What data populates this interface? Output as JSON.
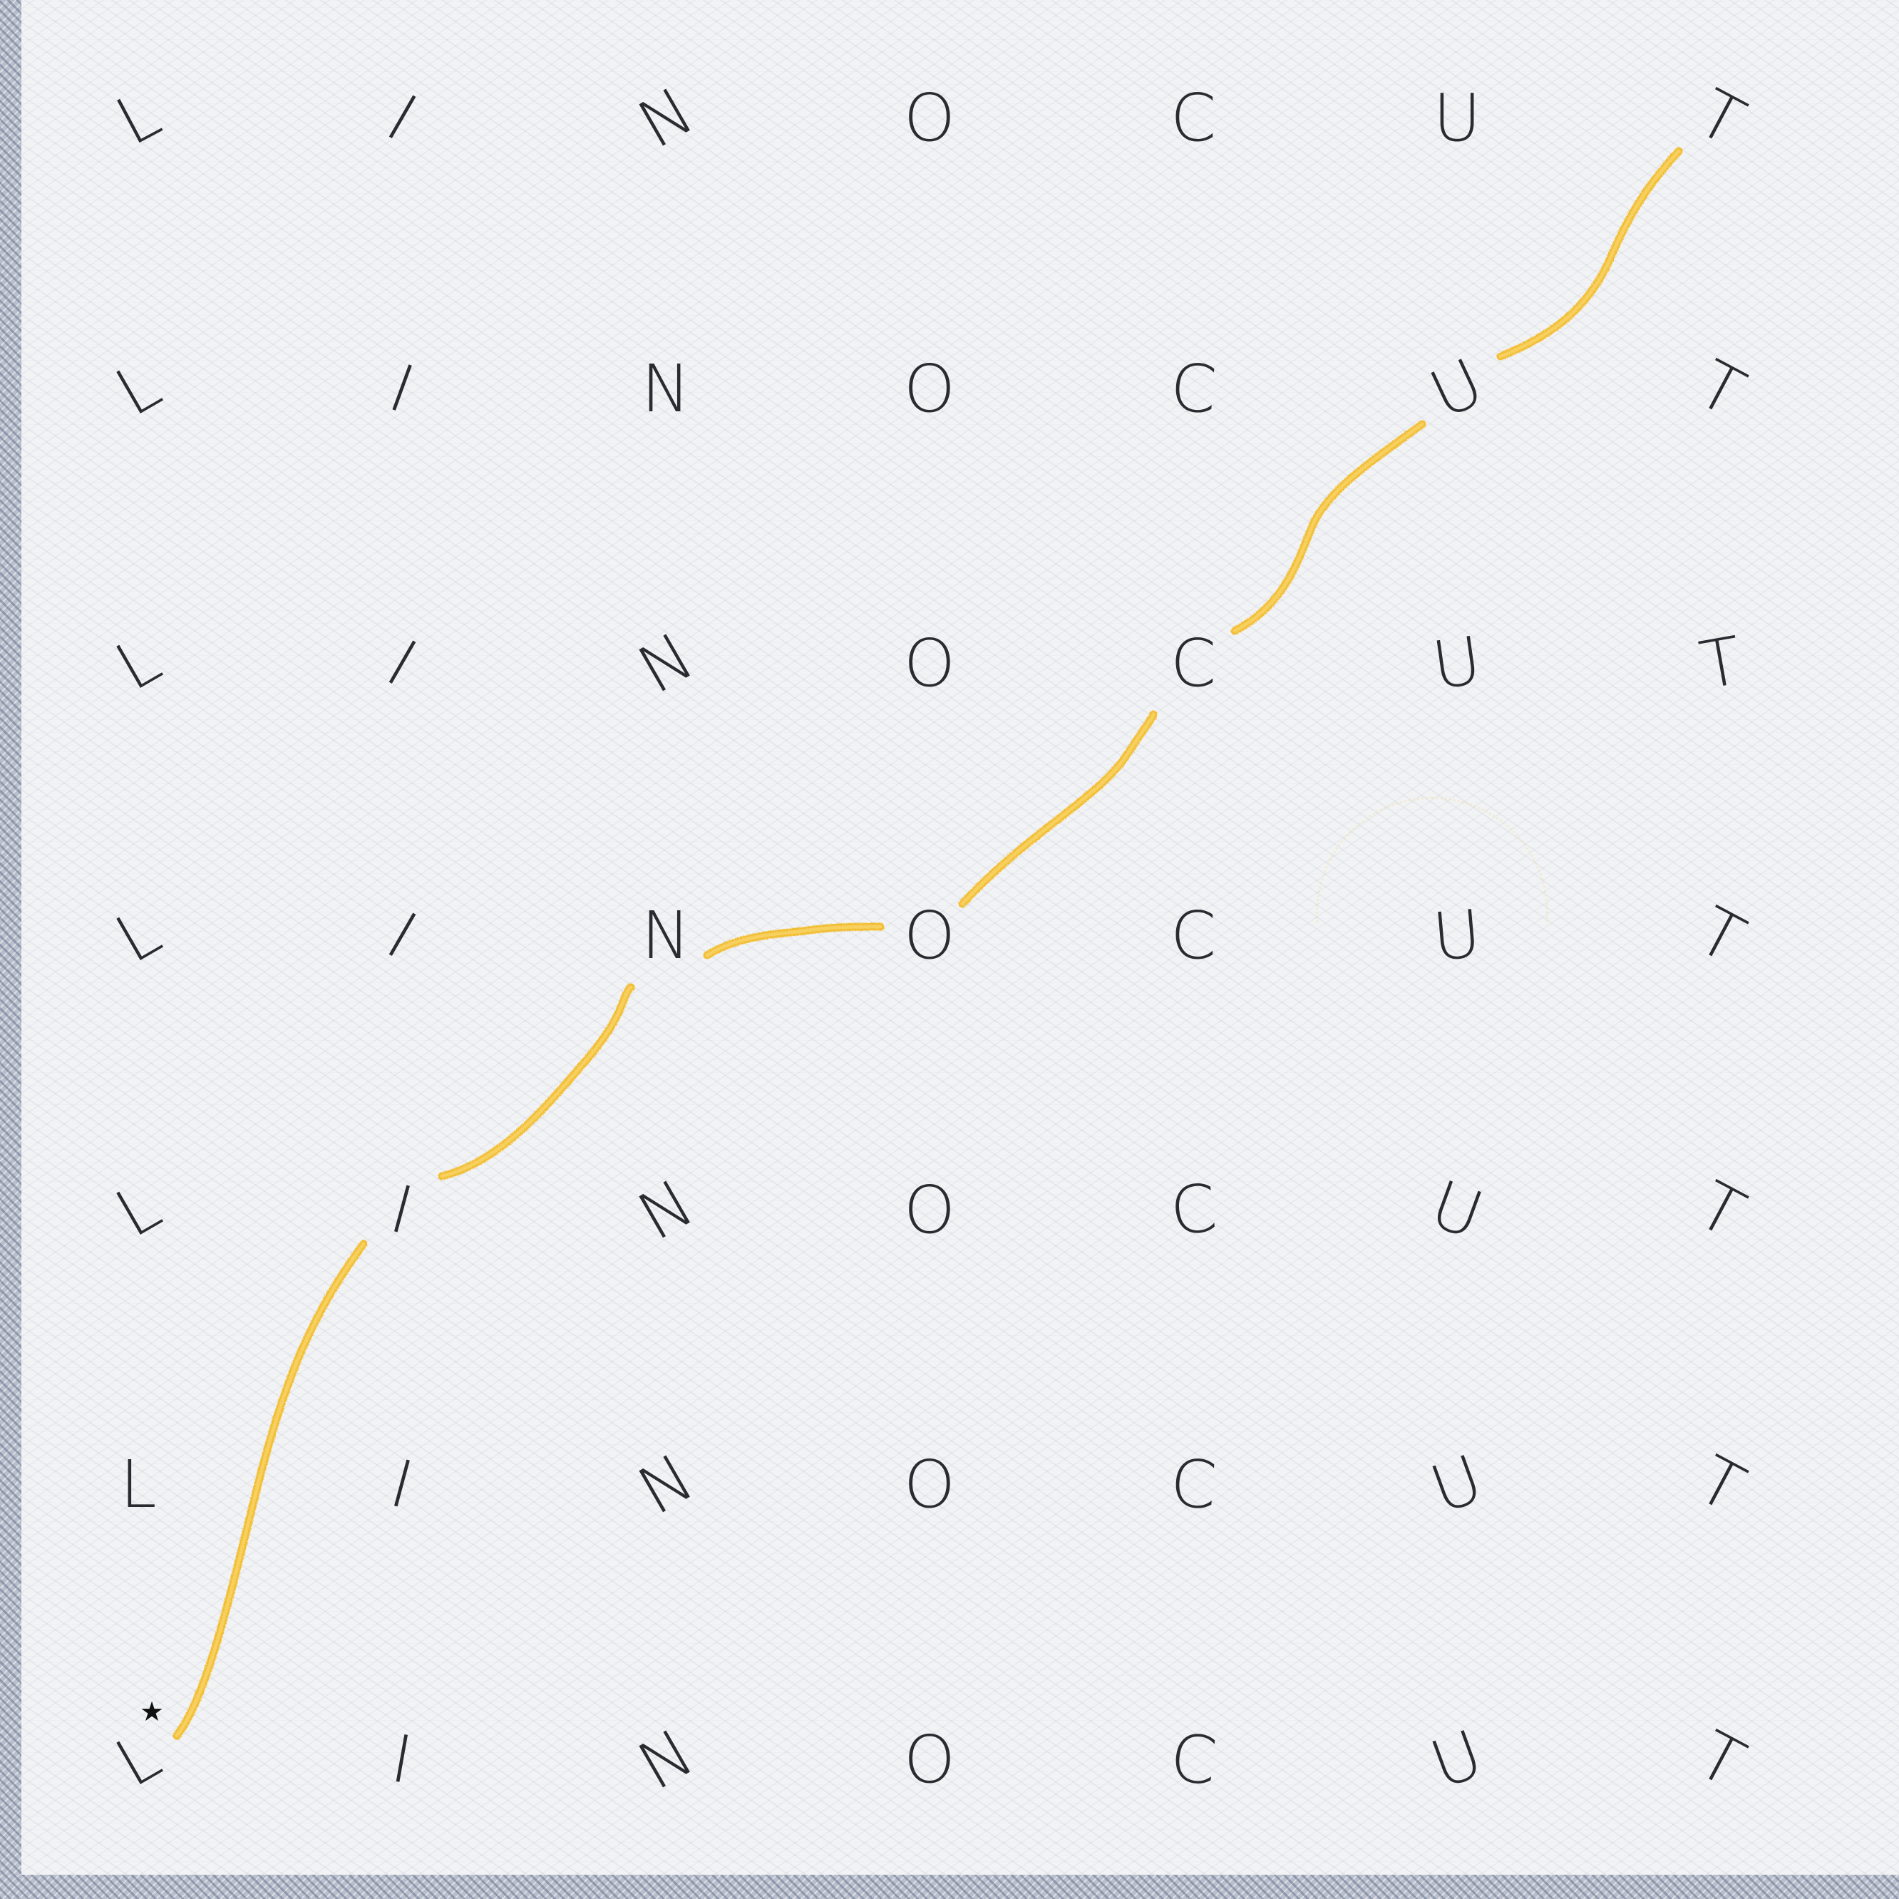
{
  "puzzle": {
    "word": "LINOCUT",
    "rows": [
      [
        "L",
        "I",
        "N",
        "O",
        "C",
        "U",
        "T"
      ],
      [
        "L",
        "I",
        "N",
        "O",
        "C",
        "U",
        "T"
      ],
      [
        "L",
        "I",
        "N",
        "O",
        "C",
        "U",
        "T"
      ],
      [
        "L",
        "I",
        "N",
        "O",
        "C",
        "U",
        "T"
      ],
      [
        "L",
        "I",
        "N",
        "O",
        "C",
        "U",
        "T"
      ],
      [
        "L",
        "I",
        "N",
        "O",
        "C",
        "U",
        "T"
      ],
      [
        "L",
        "I",
        "N",
        "O",
        "C",
        "U",
        "T"
      ]
    ],
    "start_marker": "★",
    "selected_path_cells": [
      [
        6,
        0
      ],
      [
        4,
        1
      ],
      [
        3,
        2
      ],
      [
        3,
        3
      ],
      [
        2,
        4
      ],
      [
        1,
        5
      ],
      [
        0,
        6
      ]
    ],
    "path_color": "#f2b81c"
  },
  "icons": {
    "start": "star-icon"
  },
  "colors": {
    "letter": "#2a2b30",
    "background": "#f2f3f5",
    "border": "#b9bfcc",
    "path": "#f2b81c"
  }
}
